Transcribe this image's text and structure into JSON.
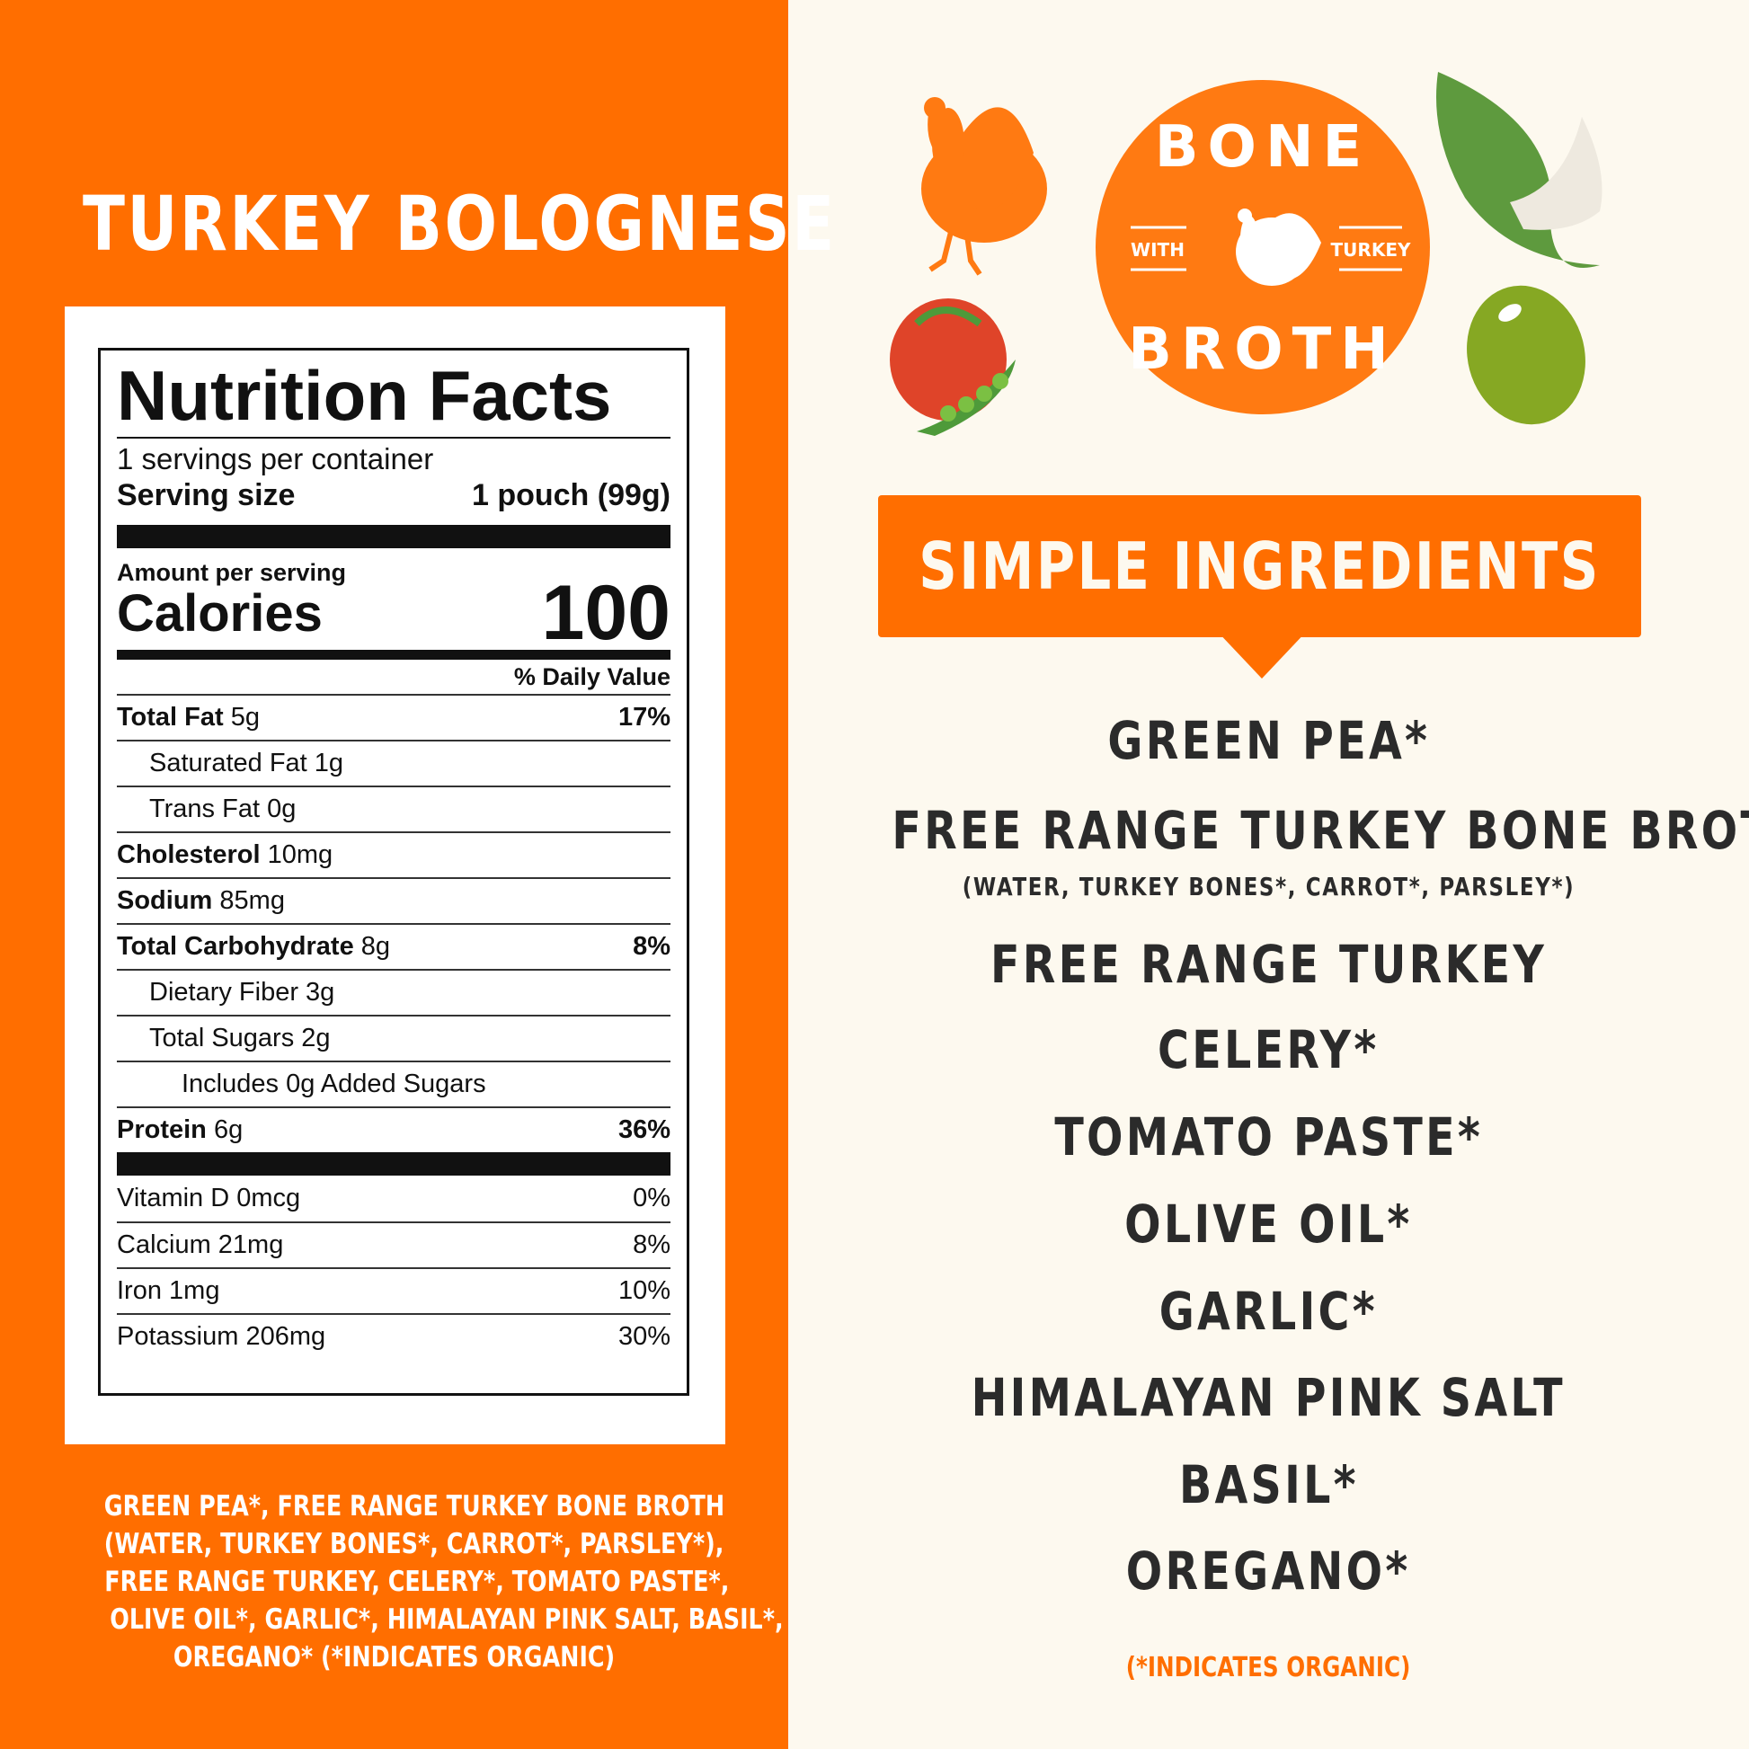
{
  "title": "TURKEY BOLOGNESE",
  "nutrition": {
    "heading": "Nutrition Facts",
    "servings": "1 servings per container",
    "serving_size_label": "Serving size",
    "serving_size_value": "1 pouch (99g)",
    "amount_per_serving": "Amount per serving",
    "calories_label": "Calories",
    "calories_value": "100",
    "daily_value_header": "% Daily Value",
    "rows": [
      {
        "name": "Total Fat",
        "amount": "5g",
        "dv": "17%"
      },
      {
        "name": "Saturated Fat 1g",
        "amount": "",
        "dv": ""
      },
      {
        "name": "Trans Fat 0g",
        "amount": "",
        "dv": ""
      },
      {
        "name": "Cholesterol",
        "amount": "10mg",
        "dv": ""
      },
      {
        "name": "Sodium",
        "amount": "85mg",
        "dv": ""
      },
      {
        "name": "Total Carbohydrate",
        "amount": "8g",
        "dv": "8%"
      },
      {
        "name": "Dietary Fiber 3g",
        "amount": "",
        "dv": ""
      },
      {
        "name": "Total Sugars 2g",
        "amount": "",
        "dv": ""
      },
      {
        "name": "Includes 0g Added Sugars",
        "amount": "",
        "dv": ""
      },
      {
        "name": "Protein",
        "amount": "6g",
        "dv": "36%"
      }
    ],
    "vitamins": [
      {
        "name": "Vitamin D 0mcg",
        "dv": "0%"
      },
      {
        "name": "Calcium 21mg",
        "dv": "8%"
      },
      {
        "name": "Iron 1mg",
        "dv": "10%"
      },
      {
        "name": "Potassium 206mg",
        "dv": "30%"
      }
    ]
  },
  "ingredients_paragraph": [
    "GREEN PEA*, FREE RANGE TURKEY BONE BROTH",
    "(WATER, TURKEY BONES*, CARROT*, PARSLEY*),",
    "FREE RANGE TURKEY, CELERY*, TOMATO PASTE*,",
    "OLIVE OIL*, GARLIC*, HIMALAYAN PINK SALT, BASIL*,",
    "OREGANO* (*INDICATES ORGANIC)"
  ],
  "logo": {
    "top": "BONE",
    "bottom": "BROTH",
    "left": "WITH",
    "right": "TURKEY"
  },
  "banner": "SIMPLE INGREDIENTS",
  "ingredients": [
    "GREEN PEA*",
    "FREE RANGE TURKEY BONE BROTH*",
    "(WATER, TURKEY BONES*, CARROT*, PARSLEY*)",
    "FREE RANGE TURKEY",
    "CELERY*",
    "TOMATO PASTE*",
    "OLIVE OIL*",
    "GARLIC*",
    "HIMALAYAN PINK SALT",
    "BASIL*",
    "OREGANO*"
  ],
  "organic_note": "(*INDICATES ORGANIC)",
  "colors": {
    "brand_orange": "#FF6E00",
    "background": "#FDF9EF",
    "text": "#2B2B2B"
  }
}
